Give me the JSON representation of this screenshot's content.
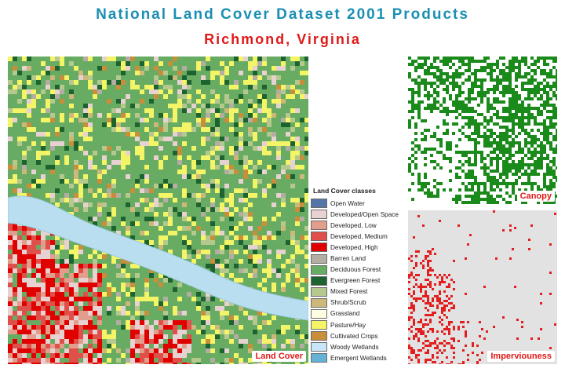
{
  "header": {
    "title": "National Land Cover Dataset 2001 Products",
    "subtitle": "Richmond, Virginia"
  },
  "maps": {
    "landcover_label": "Land Cover",
    "canopy_label": "Canopy",
    "imperviousness_label": "Imperviouness"
  },
  "legend": {
    "title": "Land Cover classes",
    "items": [
      {
        "label": "Open Water",
        "color": "#5475a8"
      },
      {
        "label": "Developed/Open Space",
        "color": "#e8d1d1"
      },
      {
        "label": "Developed, Low",
        "color": "#e29e8c"
      },
      {
        "label": "Developed, Medium",
        "color": "#e0504a"
      },
      {
        "label": "Developed, High",
        "color": "#e00000"
      },
      {
        "label": "Barren Land",
        "color": "#b3ada3"
      },
      {
        "label": "Deciduous Forest",
        "color": "#68ab63"
      },
      {
        "label": "Evergreen Forest",
        "color": "#1c6330"
      },
      {
        "label": "Mixed Forest",
        "color": "#b5c98e"
      },
      {
        "label": "Shrub/Scrub",
        "color": "#ccb879"
      },
      {
        "label": "Grassland",
        "color": "#fdfde1"
      },
      {
        "label": "Pasture/Hay",
        "color": "#f4f467"
      },
      {
        "label": "Cultivated Crops",
        "color": "#c98e3a"
      },
      {
        "label": "Woody Wetlands",
        "color": "#c8e6f8"
      },
      {
        "label": "Emergent Wetlands",
        "color": "#64b3d5"
      }
    ]
  },
  "colors": {
    "title": "#1b8fb3",
    "subtitle": "#e01818",
    "canopy": "#1a8a1a",
    "imperviousness": "#e21e1e",
    "river": "#b9def0"
  }
}
